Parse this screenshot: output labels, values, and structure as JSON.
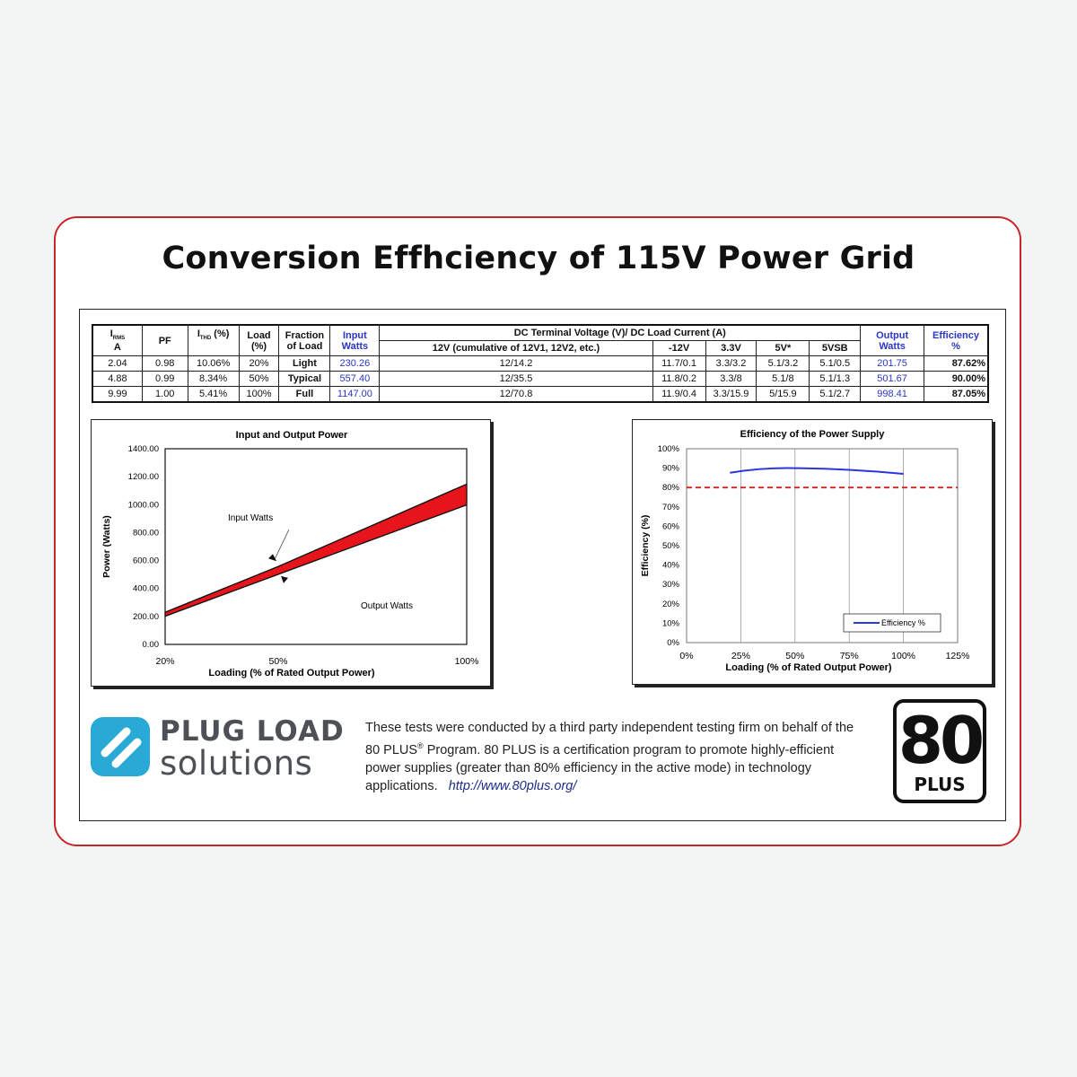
{
  "page_title": "Conversion Effhciency of 115V Power Grid",
  "table": {
    "headers": {
      "irms_main": "I",
      "irms_sub": "RMS",
      "irms_unit": "A",
      "pf": "PF",
      "ithd_main": "I",
      "ithd_sub": "THD",
      "ithd_unit": " (%)",
      "load_1": "Load",
      "load_2": "(%)",
      "fraction_1": "Fraction",
      "fraction_2": "of Load",
      "input_1": "Input",
      "input_2": "Watts",
      "dc_group": "DC Terminal Voltage (V)/ DC Load Current (A)",
      "dc_12v": "12V (cumulative of 12V1, 12V2, etc.)",
      "dc_m12v": "-12V",
      "dc_3v3": "3.3V",
      "dc_5v": "5V*",
      "dc_5vsb": "5VSB",
      "output_1": "Output",
      "output_2": "Watts",
      "eff_1": "Efficiency",
      "eff_2": "%"
    },
    "rows": [
      {
        "irms": "2.04",
        "pf": "0.98",
        "ithd": "10.06%",
        "load": "20%",
        "fraction": "Light",
        "input": "230.26",
        "v12": "12/14.2",
        "vm12": "11.7/0.1",
        "v33": "3.3/3.2",
        "v5": "5.1/3.2",
        "v5sb": "5.1/0.5",
        "output": "201.75",
        "eff": "87.62%"
      },
      {
        "irms": "4.88",
        "pf": "0.99",
        "ithd": "8.34%",
        "load": "50%",
        "fraction": "Typical",
        "input": "557.40",
        "v12": "12/35.5",
        "vm12": "11.8/0.2",
        "v33": "3.3/8",
        "v5": "5.1/8",
        "v5sb": "5.1/1.3",
        "output": "501.67",
        "eff": "90.00%"
      },
      {
        "irms": "9.99",
        "pf": "1.00",
        "ithd": "5.41%",
        "load": "100%",
        "fraction": "Full",
        "input": "1147.00",
        "v12": "12/70.8",
        "vm12": "11.9/0.4",
        "v33": "3.3/15.9",
        "v5": "5/15.9",
        "v5sb": "5.1/2.7",
        "output": "998.41",
        "eff": "87.05%"
      }
    ]
  },
  "chart_data": [
    {
      "type": "area",
      "title": "Input and Output Power",
      "xlabel": "Loading (% of Rated Output Power)",
      "ylabel": "Power (Watts)",
      "x_ticks": [
        "20%",
        "50%",
        "100%"
      ],
      "y_ticks": [
        "0.00",
        "200.00",
        "400.00",
        "600.00",
        "800.00",
        "1000.00",
        "1200.00",
        "1400.00"
      ],
      "ylim": [
        0,
        1400
      ],
      "x": [
        20,
        50,
        100
      ],
      "series": [
        {
          "name": "Input Watts",
          "values": [
            230.26,
            557.4,
            1147.0
          ]
        },
        {
          "name": "Output Watts",
          "values": [
            201.75,
            501.67,
            998.41
          ]
        }
      ],
      "fill_color": "#e8141b",
      "grid": false
    },
    {
      "type": "line",
      "title": "Efficiency of the Power Supply",
      "xlabel": "Loading (% of Rated Output Power)",
      "ylabel": "Efficiency (%)",
      "x_ticks": [
        "0%",
        "25%",
        "50%",
        "75%",
        "100%",
        "125%"
      ],
      "y_ticks": [
        "0%",
        "10%",
        "20%",
        "30%",
        "40%",
        "50%",
        "60%",
        "70%",
        "80%",
        "90%",
        "100%"
      ],
      "xlim": [
        0,
        125
      ],
      "ylim": [
        0,
        100
      ],
      "x": [
        20,
        50,
        100
      ],
      "series": [
        {
          "name": "Efficiency %",
          "values": [
            87.62,
            90.0,
            87.05
          ],
          "color": "#2a36e0"
        }
      ],
      "reference_line": {
        "value": 80,
        "color": "#d62020",
        "style": "dashed"
      },
      "legend": "bottom-right",
      "grid": true
    }
  ],
  "footer": {
    "logo_line1": "PLUG LOAD",
    "logo_line2": "solutions",
    "desc_1": "These tests were conducted by a third party independent testing firm on behalf of the 80 PLUS",
    "desc_reg": "®",
    "desc_2": " Program. 80 PLUS is a certification program to promote highly-efficient power supplies (greater than 80% efficiency in the active mode) in technology applications.",
    "link": "http://www.80plus.org/",
    "badge_number": "80",
    "badge_text": "PLUS",
    "brand_color": "#29a9d6"
  }
}
